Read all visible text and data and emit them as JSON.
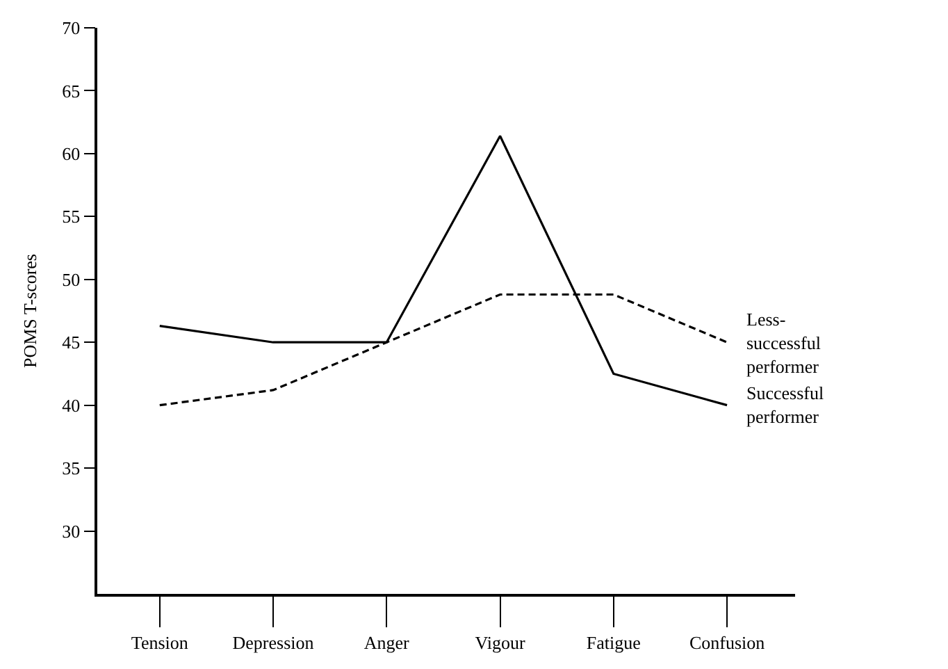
{
  "chart_data": {
    "type": "line",
    "ylabel": "POMS T-scores",
    "categories": [
      "Tension",
      "Depression",
      "Anger",
      "Vigour",
      "Fatigue",
      "Confusion"
    ],
    "ylim": [
      25,
      70
    ],
    "yticks": [
      30,
      35,
      40,
      45,
      50,
      55,
      60,
      65,
      70
    ],
    "legend": false,
    "marker": "none",
    "series": [
      {
        "name": "Successful\nperformer",
        "color": "#000000",
        "line_style": "solid",
        "values": [
          46.3,
          45,
          45,
          61.4,
          42.5,
          40
        ]
      },
      {
        "name": "Less-\nsuccessful\nperformer",
        "color": "#000000",
        "line_style": "dashed",
        "values": [
          40,
          41.2,
          45,
          48.8,
          48.8,
          45
        ]
      }
    ]
  }
}
